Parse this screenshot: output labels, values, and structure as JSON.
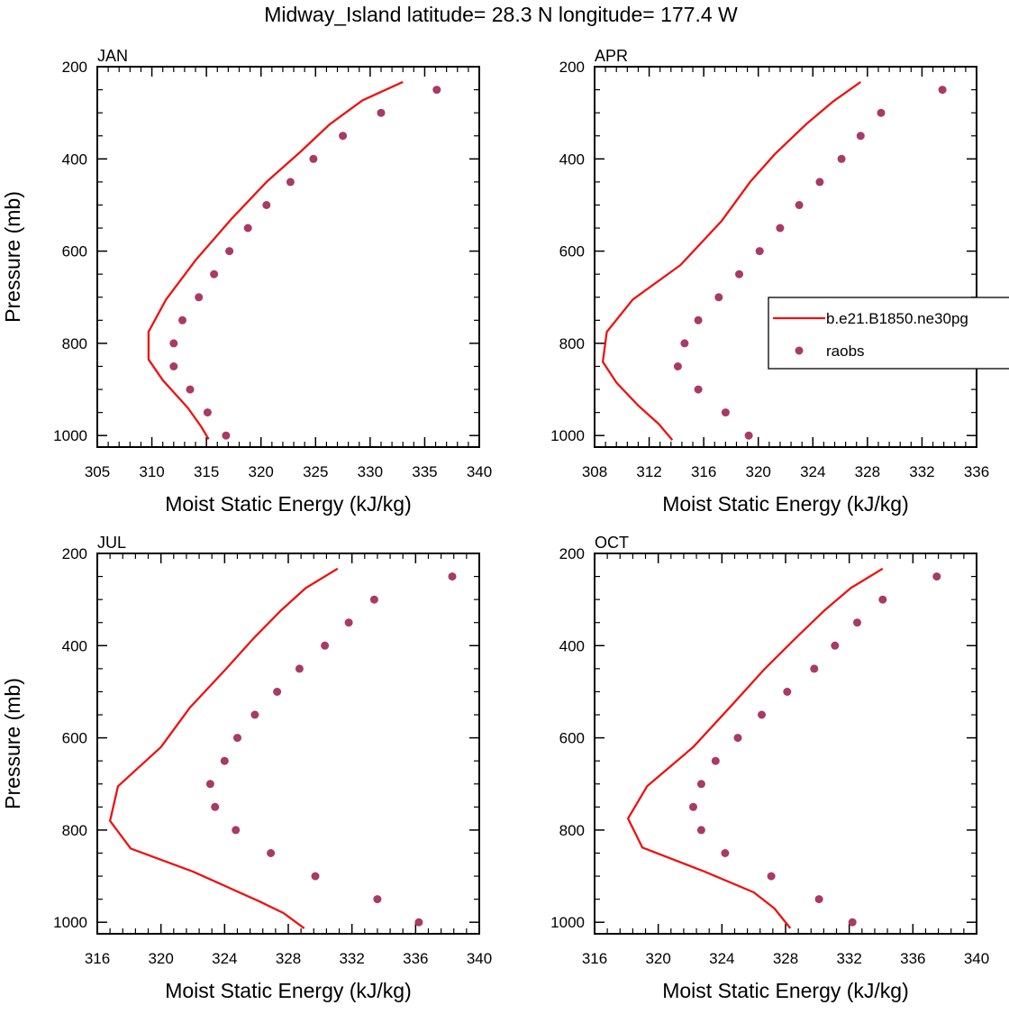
{
  "figure": {
    "title": "Midway_Island  latitude= 28.3 N longitude= 177.4 W"
  },
  "legend": {
    "model_label": "b.e21.B1850.ne30pg",
    "obs_label": "raobs"
  },
  "colors": {
    "model_line": "#ee1111",
    "obs_marker": "#a93a64",
    "axis": "#000000"
  },
  "chart_data": [
    {
      "type": "line",
      "panel_label": "JAN",
      "xlabel": "Moist Static Energy (kJ/kg)",
      "ylabel": "Pressure (mb)",
      "xlim": [
        305,
        340
      ],
      "ylim": [
        1025,
        200
      ],
      "y_inverted": true,
      "xticks": [
        305,
        310,
        315,
        320,
        325,
        330,
        335,
        340
      ],
      "yticks": [
        200,
        400,
        600,
        800,
        1000
      ],
      "series": [
        {
          "name": "b.e21.B1850.ne30pg",
          "kind": "line",
          "x": [
            333.0,
            329.3,
            326.3,
            323.6,
            320.5,
            317.3,
            314.0,
            311.3,
            309.7,
            309.7,
            311.0,
            313.3,
            314.5,
            315.2
          ],
          "y": [
            233,
            273,
            325,
            385,
            450,
            530,
            620,
            705,
            775,
            835,
            880,
            940,
            980,
            1008
          ]
        },
        {
          "name": "raobs",
          "kind": "scatter",
          "x": [
            336.1,
            331.0,
            327.5,
            324.8,
            322.7,
            320.5,
            318.8,
            317.1,
            315.7,
            314.3,
            312.8,
            312.0,
            312.0,
            313.5,
            315.1,
            316.8
          ],
          "y": [
            250,
            300,
            350,
            400,
            450,
            500,
            550,
            600,
            650,
            700,
            750,
            800,
            850,
            900,
            950,
            1000
          ]
        }
      ]
    },
    {
      "type": "line",
      "panel_label": "APR",
      "xlabel": "Moist Static Energy (kJ/kg)",
      "ylabel": "",
      "xlim": [
        308,
        336
      ],
      "ylim": [
        1025,
        200
      ],
      "y_inverted": true,
      "xticks": [
        308,
        312,
        316,
        320,
        324,
        328,
        332,
        336
      ],
      "yticks": [
        200,
        400,
        600,
        800,
        1000
      ],
      "series": [
        {
          "name": "b.e21.B1850.ne30pg",
          "kind": "line",
          "x": [
            327.5,
            325.5,
            323.5,
            321.2,
            319.4,
            317.3,
            314.3,
            310.8,
            308.9,
            308.6,
            309.6,
            311.2,
            312.7,
            313.7
          ],
          "y": [
            233,
            275,
            325,
            390,
            450,
            535,
            630,
            705,
            775,
            840,
            885,
            935,
            975,
            1010
          ]
        },
        {
          "name": "raobs",
          "kind": "scatter",
          "x": [
            333.5,
            329.0,
            327.5,
            326.1,
            324.5,
            323.0,
            321.6,
            320.1,
            318.6,
            317.1,
            315.6,
            314.6,
            314.1,
            315.6,
            317.6,
            319.3
          ],
          "y": [
            250,
            300,
            350,
            400,
            450,
            500,
            550,
            600,
            650,
            700,
            750,
            800,
            850,
            900,
            950,
            1000
          ]
        }
      ]
    },
    {
      "type": "line",
      "panel_label": "JUL",
      "xlabel": "Moist Static Energy (kJ/kg)",
      "ylabel": "Pressure (mb)",
      "xlim": [
        316,
        340
      ],
      "ylim": [
        1025,
        200
      ],
      "y_inverted": true,
      "xticks": [
        316,
        320,
        324,
        328,
        332,
        336,
        340
      ],
      "yticks": [
        200,
        400,
        600,
        800,
        1000
      ],
      "series": [
        {
          "name": "b.e21.B1850.ne30pg",
          "kind": "line",
          "x": [
            331.1,
            329.1,
            327.5,
            325.8,
            324.1,
            321.8,
            320.0,
            317.3,
            316.8,
            318.1,
            322.0,
            326.2,
            327.7,
            329.0
          ],
          "y": [
            233,
            275,
            325,
            385,
            450,
            535,
            620,
            705,
            780,
            840,
            890,
            955,
            980,
            1013
          ]
        },
        {
          "name": "raobs",
          "kind": "scatter",
          "x": [
            338.3,
            333.4,
            331.8,
            330.3,
            328.7,
            327.3,
            325.9,
            324.8,
            324.0,
            323.1,
            323.4,
            324.7,
            326.9,
            329.7,
            333.6,
            336.2
          ],
          "y": [
            250,
            300,
            350,
            400,
            450,
            500,
            550,
            600,
            650,
            700,
            750,
            800,
            850,
            900,
            950,
            1000
          ]
        }
      ]
    },
    {
      "type": "line",
      "panel_label": "OCT",
      "xlabel": "Moist Static Energy (kJ/kg)",
      "ylabel": "",
      "xlim": [
        316,
        340
      ],
      "ylim": [
        1025,
        200
      ],
      "y_inverted": true,
      "xticks": [
        316,
        320,
        324,
        328,
        332,
        336,
        340
      ],
      "yticks": [
        200,
        400,
        600,
        800,
        1000
      ],
      "series": [
        {
          "name": "b.e21.B1850.ne30pg",
          "kind": "line",
          "x": [
            334.1,
            332.1,
            330.4,
            328.6,
            326.7,
            324.6,
            322.2,
            319.3,
            318.1,
            319.0,
            322.9,
            326.0,
            327.3,
            328.3
          ],
          "y": [
            233,
            275,
            325,
            385,
            450,
            530,
            620,
            705,
            775,
            838,
            890,
            935,
            970,
            1013
          ]
        },
        {
          "name": "raobs",
          "kind": "scatter",
          "x": [
            337.5,
            334.1,
            332.5,
            331.1,
            329.8,
            328.1,
            326.5,
            325.0,
            323.6,
            322.7,
            322.2,
            322.7,
            324.2,
            327.1,
            330.1,
            332.2
          ],
          "y": [
            250,
            300,
            350,
            400,
            450,
            500,
            550,
            600,
            650,
            700,
            750,
            800,
            850,
            900,
            950,
            1000
          ]
        }
      ]
    }
  ]
}
